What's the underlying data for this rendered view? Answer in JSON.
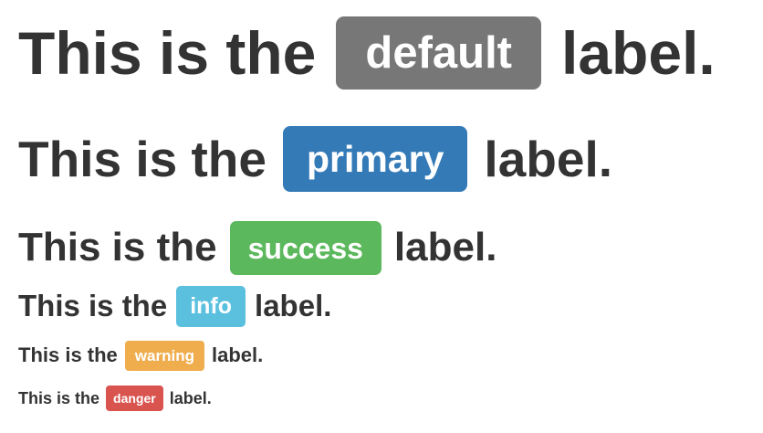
{
  "lines": [
    {
      "prefix": "This is the",
      "label": "default",
      "suffix": "label.",
      "color": "#777777"
    },
    {
      "prefix": "This is the",
      "label": "primary",
      "suffix": "label.",
      "color": "#337ab7"
    },
    {
      "prefix": "This is the",
      "label": "success",
      "suffix": "label.",
      "color": "#5cb85c"
    },
    {
      "prefix": "This is the",
      "label": "info",
      "suffix": "label.",
      "color": "#5bc0de"
    },
    {
      "prefix": "This is the",
      "label": "warning",
      "suffix": "label.",
      "color": "#f0ad4e"
    },
    {
      "prefix": "This is the",
      "label": "danger",
      "suffix": "label.",
      "color": "#d9534f"
    }
  ]
}
